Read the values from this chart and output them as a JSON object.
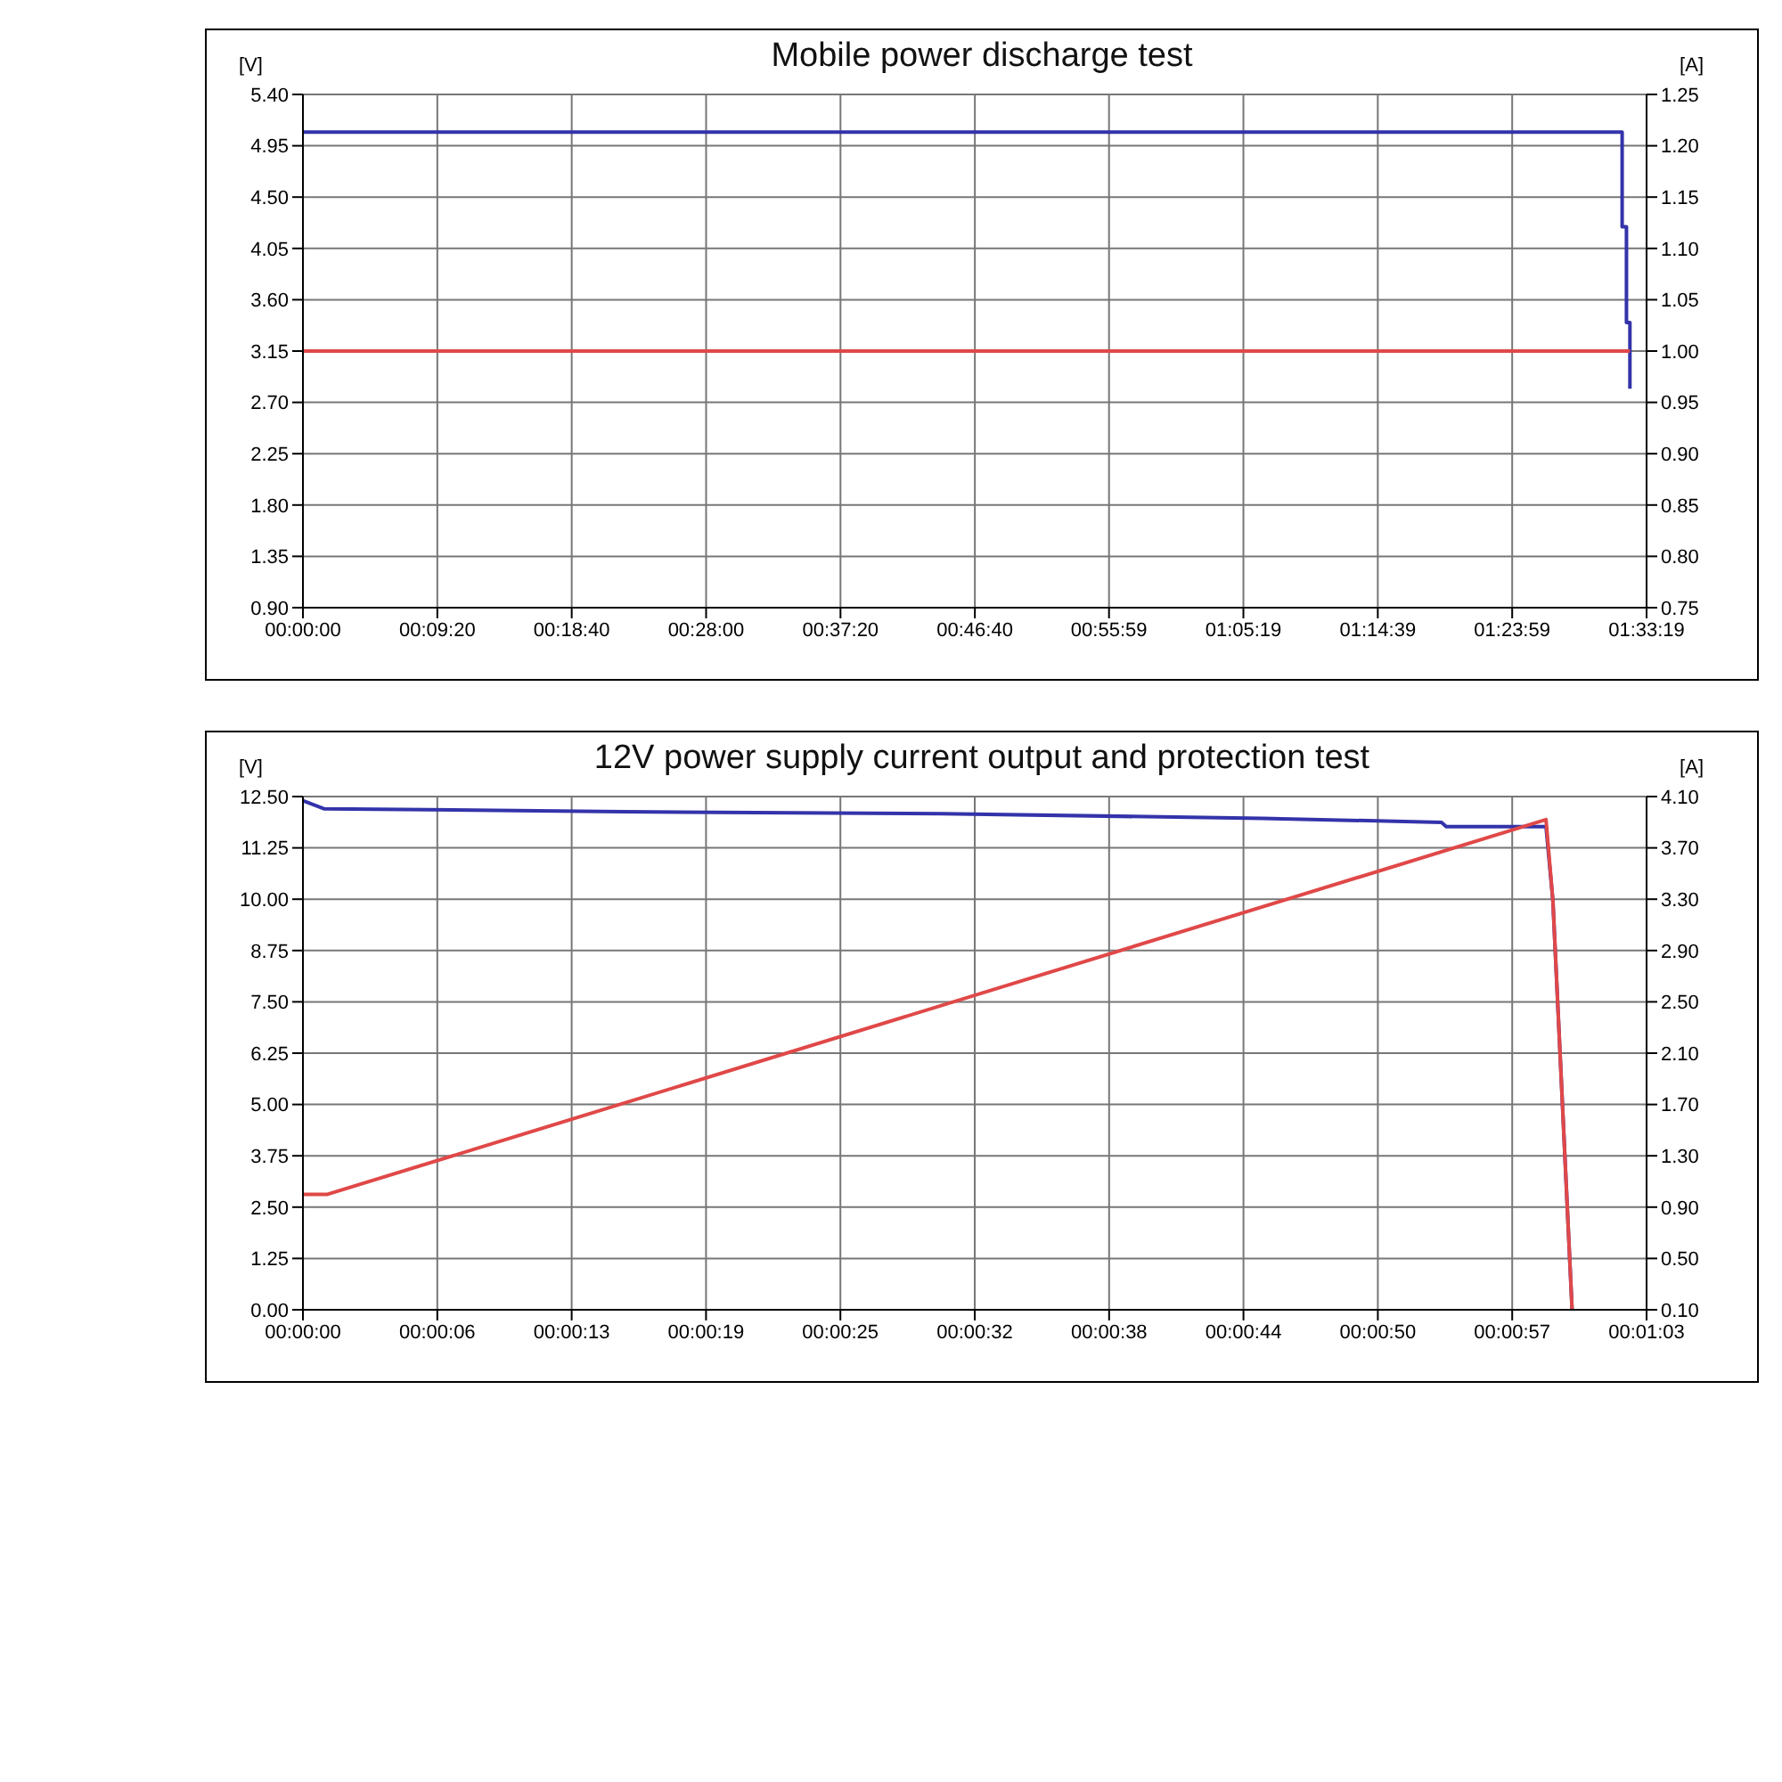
{
  "chart_data": [
    {
      "type": "line",
      "title": "Mobile power discharge test",
      "ylabel": "[V]",
      "y2label": "[A]",
      "grid": true,
      "xlim": [
        0,
        1.55528
      ],
      "xticks": [
        {
          "value": 0,
          "label": "00:00:00"
        },
        {
          "value": 0.15556,
          "label": "00:09:20"
        },
        {
          "value": 0.31111,
          "label": "00:18:40"
        },
        {
          "value": 0.46667,
          "label": "00:28:00"
        },
        {
          "value": 0.62222,
          "label": "00:37:20"
        },
        {
          "value": 0.77778,
          "label": "00:46:40"
        },
        {
          "value": 0.93306,
          "label": "00:55:59"
        },
        {
          "value": 1.08861,
          "label": "01:05:19"
        },
        {
          "value": 1.24417,
          "label": "01:14:39"
        },
        {
          "value": 1.39972,
          "label": "01:23:59"
        },
        {
          "value": 1.55528,
          "label": "01:33:19"
        }
      ],
      "ylim": [
        0.9,
        5.4
      ],
      "yticks": [
        {
          "value": 0.9,
          "label": "0.90"
        },
        {
          "value": 1.35,
          "label": "1.35"
        },
        {
          "value": 1.8,
          "label": "1.80"
        },
        {
          "value": 2.25,
          "label": "2.25"
        },
        {
          "value": 2.7,
          "label": "2.70"
        },
        {
          "value": 3.15,
          "label": "3.15"
        },
        {
          "value": 3.6,
          "label": "3.60"
        },
        {
          "value": 4.05,
          "label": "4.05"
        },
        {
          "value": 4.5,
          "label": "4.50"
        },
        {
          "value": 4.95,
          "label": "4.95"
        },
        {
          "value": 5.4,
          "label": "5.40"
        }
      ],
      "y2lim": [
        0.75,
        1.25
      ],
      "y2ticks": [
        {
          "value": 0.75,
          "label": "0.75"
        },
        {
          "value": 0.8,
          "label": "0.80"
        },
        {
          "value": 0.85,
          "label": "0.85"
        },
        {
          "value": 0.9,
          "label": "0.90"
        },
        {
          "value": 0.95,
          "label": "0.95"
        },
        {
          "value": 1.0,
          "label": "1.00"
        },
        {
          "value": 1.05,
          "label": "1.05"
        },
        {
          "value": 1.1,
          "label": "1.10"
        },
        {
          "value": 1.15,
          "label": "1.15"
        },
        {
          "value": 1.2,
          "label": "1.20"
        },
        {
          "value": 1.25,
          "label": "1.25"
        }
      ],
      "series": [
        {
          "color": "#3333aa",
          "axis": "y",
          "x": [
            0,
            1.527,
            1.527,
            1.532,
            1.532,
            1.536,
            1.536
          ],
          "values": [
            5.07,
            5.07,
            4.24,
            4.24,
            3.4,
            3.4,
            2.82
          ]
        },
        {
          "color": "#e04848",
          "axis": "y2",
          "x": [
            0,
            1.536
          ],
          "values": [
            1.0,
            1.0
          ]
        }
      ]
    },
    {
      "type": "line",
      "title": "12V power supply current output and protection test",
      "ylabel": "[V]",
      "y2label": "[A]",
      "grid": true,
      "xlim": [
        0,
        0.0175
      ],
      "xticks": [
        {
          "value": 0,
          "label": "00:00:00"
        },
        {
          "value": 0.00175,
          "label": "00:00:06"
        },
        {
          "value": 0.0035,
          "label": "00:00:13"
        },
        {
          "value": 0.00525,
          "label": "00:00:19"
        },
        {
          "value": 0.007,
          "label": "00:00:25"
        },
        {
          "value": 0.00875,
          "label": "00:00:32"
        },
        {
          "value": 0.0105,
          "label": "00:00:38"
        },
        {
          "value": 0.01225,
          "label": "00:00:44"
        },
        {
          "value": 0.014,
          "label": "00:00:50"
        },
        {
          "value": 0.01575,
          "label": "00:00:57"
        },
        {
          "value": 0.0175,
          "label": "00:01:03"
        }
      ],
      "ylim": [
        0,
        12.5
      ],
      "yticks": [
        {
          "value": 0,
          "label": "0.00"
        },
        {
          "value": 1.25,
          "label": "1.25"
        },
        {
          "value": 2.5,
          "label": "2.50"
        },
        {
          "value": 3.75,
          "label": "3.75"
        },
        {
          "value": 5,
          "label": "5.00"
        },
        {
          "value": 6.25,
          "label": "6.25"
        },
        {
          "value": 7.5,
          "label": "7.50"
        },
        {
          "value": 8.75,
          "label": "8.75"
        },
        {
          "value": 10,
          "label": "10.00"
        },
        {
          "value": 11.25,
          "label": "11.25"
        },
        {
          "value": 12.5,
          "label": "12.50"
        }
      ],
      "y2lim": [
        0.1,
        4.1
      ],
      "y2ticks": [
        {
          "value": 0.1,
          "label": "0.10"
        },
        {
          "value": 0.5,
          "label": "0.50"
        },
        {
          "value": 0.9,
          "label": "0.90"
        },
        {
          "value": 1.3,
          "label": "1.30"
        },
        {
          "value": 1.7,
          "label": "1.70"
        },
        {
          "value": 2.1,
          "label": "2.10"
        },
        {
          "value": 2.5,
          "label": "2.50"
        },
        {
          "value": 2.9,
          "label": "2.90"
        },
        {
          "value": 3.3,
          "label": "3.30"
        },
        {
          "value": 3.7,
          "label": "3.70"
        },
        {
          "value": 4.1,
          "label": "4.10"
        }
      ],
      "series": [
        {
          "color": "#3333aa",
          "axis": "y",
          "x": [
            0,
            0.00028,
            0.00222,
            0.00417,
            0.00833,
            0.0125,
            0.01483,
            0.01489,
            0.01619,
            0.01628,
            0.01653
          ],
          "values": [
            12.4,
            12.2,
            12.17,
            12.13,
            12.08,
            11.97,
            11.87,
            11.77,
            11.77,
            9.96,
            0
          ]
        },
        {
          "color": "#e04848",
          "axis": "y2",
          "x": [
            0,
            0.00032,
            0.01619,
            0.01628,
            0.01653
          ],
          "values": [
            1.0,
            1.0,
            3.92,
            3.29,
            0.1
          ]
        }
      ]
    }
  ]
}
